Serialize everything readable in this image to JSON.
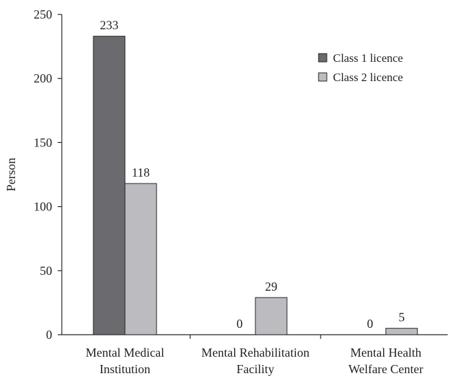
{
  "chart_data": {
    "type": "bar",
    "title": "",
    "xlabel": "",
    "ylabel": "Person",
    "ylim": [
      0,
      250
    ],
    "yticks": [
      0,
      50,
      100,
      150,
      200,
      250
    ],
    "grid": false,
    "legend_position": "top-right",
    "categories": [
      [
        "Mental Medical",
        "Institution"
      ],
      [
        "Mental Rehabilitation",
        "Facility"
      ],
      [
        "Mental Health",
        "Welfare Center"
      ]
    ],
    "series": [
      {
        "name": "Class 1 licence",
        "color": "#6b6b6f",
        "values": [
          233,
          0,
          0
        ]
      },
      {
        "name": "Class 2 licence",
        "color": "#bcbcc0",
        "values": [
          118,
          29,
          5
        ]
      }
    ]
  }
}
